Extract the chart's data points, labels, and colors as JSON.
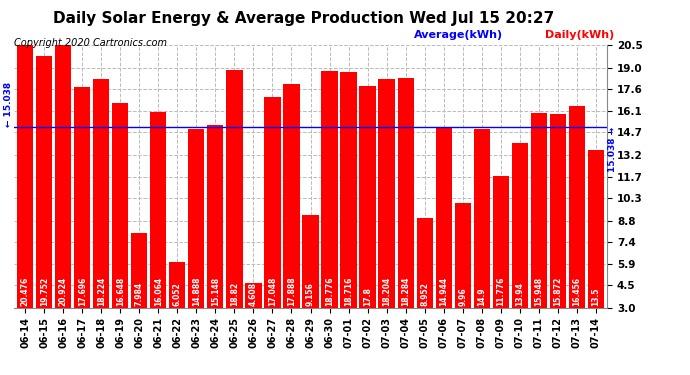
{
  "title": "Daily Solar Energy & Average Production Wed Jul 15 20:27",
  "copyright": "Copyright 2020 Cartronics.com",
  "legend_avg": "Average(kWh)",
  "legend_daily": "Daily(kWh)",
  "average_value": 15.038,
  "bar_color": "#ff0000",
  "avg_line_color": "#0000ff",
  "avg_label_color": "#0000ff",
  "daily_label_color": "#ff0000",
  "categories": [
    "06-14",
    "06-15",
    "06-16",
    "06-17",
    "06-18",
    "06-19",
    "06-20",
    "06-21",
    "06-22",
    "06-23",
    "06-24",
    "06-25",
    "06-26",
    "06-27",
    "06-28",
    "06-29",
    "06-30",
    "07-01",
    "07-02",
    "07-03",
    "07-04",
    "07-05",
    "07-06",
    "07-07",
    "07-08",
    "07-09",
    "07-10",
    "07-11",
    "07-12",
    "07-13",
    "07-14"
  ],
  "values": [
    20.476,
    19.752,
    20.924,
    17.696,
    18.224,
    16.648,
    7.984,
    16.064,
    6.052,
    14.888,
    15.148,
    18.82,
    4.608,
    17.048,
    17.888,
    9.156,
    18.776,
    18.716,
    17.8,
    18.204,
    18.284,
    8.952,
    14.944,
    9.96,
    14.9,
    11.776,
    13.94,
    15.948,
    15.872,
    16.456,
    13.5
  ],
  "ylim_min": 3.0,
  "ylim_max": 20.5,
  "yticks": [
    3.0,
    4.5,
    5.9,
    7.4,
    8.8,
    10.3,
    11.7,
    13.2,
    14.7,
    16.1,
    17.6,
    19.0,
    20.5
  ],
  "bg_color": "#ffffff",
  "grid_color": "#bbbbbb",
  "title_fontsize": 11,
  "bar_label_fontsize": 5.5,
  "tick_fontsize": 7.5,
  "copyright_fontsize": 7
}
